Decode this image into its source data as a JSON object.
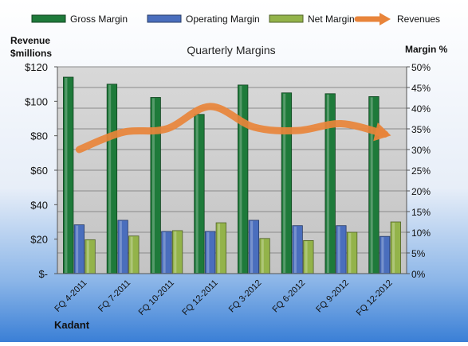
{
  "chart_data": {
    "type": "bar",
    "title": "Quarterly Margins",
    "brand": "Kadant",
    "ylabel_left": [
      "Revenue",
      "$millions"
    ],
    "ylabel_right": "Margin %",
    "left_axis": {
      "range": [
        0,
        120
      ],
      "ticks": [
        0,
        20,
        40,
        60,
        80,
        100,
        120
      ],
      "tick_labels": [
        "$-",
        "$20",
        "$40",
        "$60",
        "$80",
        "$100",
        "$120"
      ]
    },
    "right_axis": {
      "range": [
        0,
        50
      ],
      "ticks": [
        0,
        5,
        10,
        15,
        20,
        25,
        30,
        35,
        40,
        45,
        50
      ],
      "tick_labels": [
        "0%",
        "5%",
        "10%",
        "15%",
        "20%",
        "25%",
        "30%",
        "35%",
        "40%",
        "45%",
        "50%"
      ]
    },
    "categories": [
      "FQ 4-2011",
      "FQ 7-2011",
      "FQ 10-2011",
      "FQ 12-2011",
      "FQ 3-2012",
      "FQ 6-2012",
      "FQ 9-2012",
      "FQ 12-2012"
    ],
    "series": [
      {
        "name": "Gross Margin",
        "axis": "right",
        "kind": "bar",
        "color": "#1e7a3a",
        "values": [
          47.5,
          45.8,
          42.6,
          38.5,
          45.6,
          43.7,
          43.5,
          42.8
        ]
      },
      {
        "name": "Operating Margin",
        "axis": "right",
        "kind": "bar",
        "color": "#4a6ebd",
        "values": [
          11.8,
          12.9,
          10.2,
          10.2,
          12.9,
          11.6,
          11.6,
          9.0
        ]
      },
      {
        "name": "Net Margin",
        "axis": "right",
        "kind": "bar",
        "color": "#93b34a",
        "values": [
          8.2,
          9.1,
          10.4,
          12.3,
          8.5,
          8.0,
          10.0,
          12.5
        ]
      },
      {
        "name": "Revenues",
        "axis": "left",
        "kind": "line",
        "color": "#e8843a",
        "values": [
          72,
          82,
          84,
          97,
          85,
          83,
          87,
          81
        ]
      }
    ],
    "grid": true,
    "legend": "top"
  }
}
